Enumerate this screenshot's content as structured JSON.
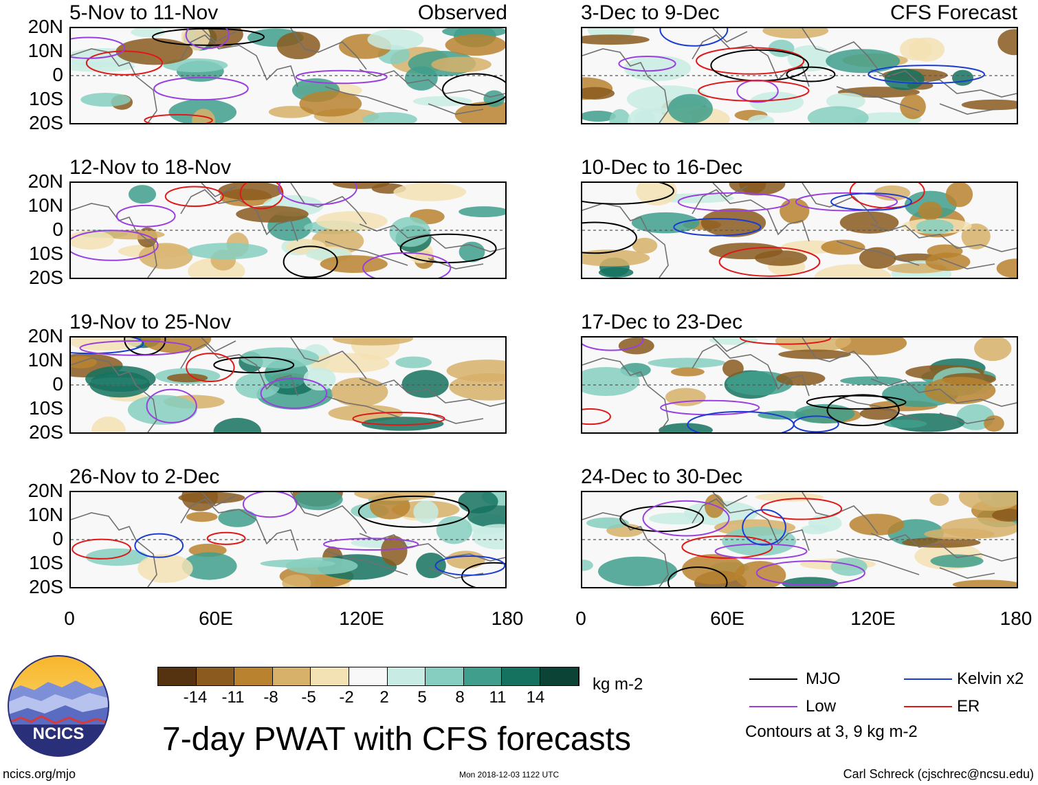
{
  "left_panels": [
    {
      "title": "5-Nov to 11-Nov",
      "tag": "Observed"
    },
    {
      "title": "12-Nov to 18-Nov",
      "tag": ""
    },
    {
      "title": "19-Nov to 25-Nov",
      "tag": ""
    },
    {
      "title": "26-Nov to 2-Dec",
      "tag": ""
    }
  ],
  "right_panels": [
    {
      "title": "3-Dec to 9-Dec",
      "tag": "CFS Forecast"
    },
    {
      "title": "10-Dec to 16-Dec",
      "tag": ""
    },
    {
      "title": "17-Dec to 23-Dec",
      "tag": ""
    },
    {
      "title": "24-Dec to 30-Dec",
      "tag": ""
    }
  ],
  "lat_labels": [
    "20N",
    "10N",
    "0",
    "10S",
    "20S"
  ],
  "lon_labels": [
    "0",
    "60E",
    "120E",
    "180"
  ],
  "colorbar": {
    "colors": [
      "#553311",
      "#8a5a1e",
      "#b8822f",
      "#d7b06a",
      "#f3e2b4",
      "#f8f8f8",
      "#c8ece3",
      "#86cfc0",
      "#3f9f8c",
      "#15725f",
      "#0b4436"
    ],
    "labels": [
      "-14",
      "-11",
      "-8",
      "-5",
      "-2",
      "2",
      "5",
      "8",
      "11",
      "14"
    ],
    "units": "kg m-2"
  },
  "title": "7-day PWAT with CFS forecasts",
  "logo_text": "NCICS",
  "site": "ncics.org/mjo",
  "timestamp": "Mon 2018-12-03 1122 UTC",
  "credit": "Carl Schreck (cjschrec@ncsu.edu)",
  "legend": {
    "items": [
      {
        "label": "MJO",
        "color": "#000000"
      },
      {
        "label": "Kelvin x2",
        "color": "#1a3cd0"
      },
      {
        "label": "Low",
        "color": "#9a3ee0"
      },
      {
        "label": "ER",
        "color": "#e01818"
      }
    ],
    "note": "Contours at 3, 9 kg m-2"
  }
}
